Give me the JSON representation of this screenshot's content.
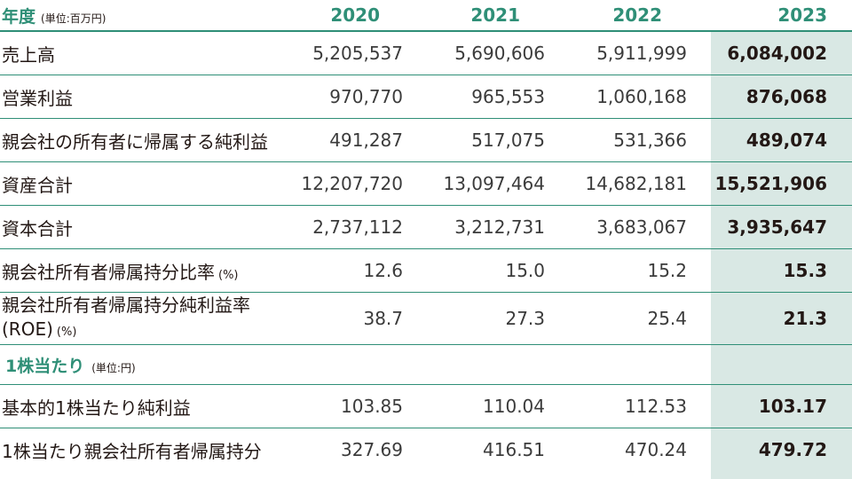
{
  "header": {
    "label": "年度",
    "unit": "(単位:百万円)",
    "years": [
      "2020",
      "2021",
      "2022",
      "2023"
    ]
  },
  "rows": [
    {
      "label": "売上高",
      "values": [
        "5,205,537",
        "5,690,606",
        "5,911,999",
        "6,084,002"
      ]
    },
    {
      "label": "営業利益",
      "values": [
        "970,770",
        "965,553",
        "1,060,168",
        "876,068"
      ]
    },
    {
      "label": "親会社の所有者に帰属する純利益",
      "values": [
        "491,287",
        "517,075",
        "531,366",
        "489,074"
      ]
    },
    {
      "label": "資産合計",
      "values": [
        "12,207,720",
        "13,097,464",
        "14,682,181",
        "15,521,906"
      ]
    },
    {
      "label": "資本合計",
      "values": [
        "2,737,112",
        "3,212,731",
        "3,683,067",
        "3,935,647"
      ]
    },
    {
      "label": "親会社所有者帰属持分比率",
      "unit": "(%)",
      "values": [
        "12.6",
        "15.0",
        "15.2",
        "15.3"
      ]
    },
    {
      "label_line1": "親会社所有者帰属持分純利益率",
      "label_line2": "(ROE)",
      "unit": "(%)",
      "values": [
        "38.7",
        "27.3",
        "25.4",
        "21.3"
      ]
    }
  ],
  "per_share": {
    "title": "1株当たり",
    "unit": "(単位:円)",
    "rows": [
      {
        "label": "基本的1株当たり純利益",
        "values": [
          "103.85",
          "110.04",
          "112.53",
          "103.17"
        ]
      },
      {
        "label": "1株当たり親会社所有者帰属持分",
        "values": [
          "327.69",
          "416.51",
          "470.24",
          "479.72"
        ]
      }
    ]
  },
  "colors": {
    "accent": "#2f8f77",
    "highlight": "#d9e8e4"
  }
}
